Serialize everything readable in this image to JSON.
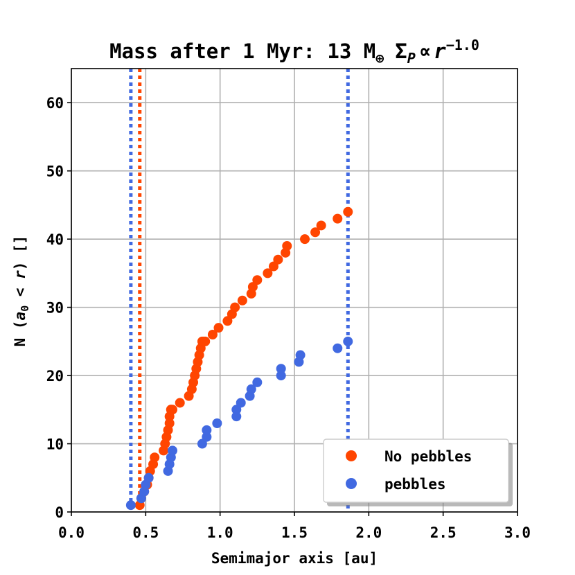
{
  "chart_data": {
    "type": "scatter",
    "title": {
      "prefix": "Mass after 1 Myr: 13 M",
      "oplus": "⊕",
      "sigma": "Σ",
      "sigma_sub": "P",
      "propto": "∝",
      "r": "r",
      "exponent": "−1.0"
    },
    "xlabel": "Semimajor axis [au]",
    "ylabel": {
      "prefix": "N (",
      "a": "a",
      "sub": "0",
      "lt": " < ",
      "r": "r",
      "suffix": ") []"
    },
    "xlim": [
      0.0,
      3.0
    ],
    "ylim": [
      0,
      65
    ],
    "xticks": [
      "0.0",
      "0.5",
      "1.0",
      "1.5",
      "2.0",
      "2.5",
      "3.0"
    ],
    "yticks": [
      "0",
      "10",
      "20",
      "30",
      "40",
      "50",
      "60"
    ],
    "grid": true,
    "legend_position": "lower-right",
    "series": [
      {
        "name": "No pebbles",
        "color": "#ff4500",
        "x": [
          0.46,
          0.47,
          0.49,
          0.51,
          0.52,
          0.53,
          0.55,
          0.56,
          0.62,
          0.63,
          0.64,
          0.65,
          0.66,
          0.66,
          0.67,
          0.67,
          0.68,
          0.73,
          0.79,
          0.81,
          0.82,
          0.83,
          0.84,
          0.85,
          0.86,
          0.87,
          0.88,
          0.89,
          0.9,
          0.95,
          0.99,
          1.05,
          1.08,
          1.1,
          1.15,
          1.21,
          1.22,
          1.25,
          1.32,
          1.36,
          1.39,
          1.44,
          1.45,
          1.57,
          1.64,
          1.68,
          1.79,
          1.86
        ],
        "y": [
          1,
          2,
          3,
          4,
          5,
          6,
          7,
          8,
          9,
          10,
          11,
          12,
          13,
          14,
          15,
          15,
          15,
          16,
          17,
          18,
          19,
          20,
          21,
          22,
          23,
          24,
          25,
          25,
          25,
          26,
          27,
          28,
          29,
          30,
          31,
          32,
          33,
          34,
          35,
          36,
          37,
          38,
          39,
          40,
          41,
          42,
          43,
          44
        ]
      },
      {
        "name": "pebbles",
        "color": "#4169e1",
        "x": [
          0.4,
          0.47,
          0.49,
          0.5,
          0.52,
          0.65,
          0.66,
          0.67,
          0.68,
          0.88,
          0.91,
          0.91,
          0.98,
          1.11,
          1.11,
          1.14,
          1.2,
          1.21,
          1.25,
          1.41,
          1.41,
          1.53,
          1.54,
          1.79,
          1.86
        ],
        "y": [
          1,
          2,
          3,
          4,
          5,
          6,
          7,
          8,
          9,
          10,
          11,
          12,
          13,
          14,
          15,
          16,
          17,
          18,
          19,
          20,
          21,
          22,
          23,
          24,
          25
        ]
      }
    ],
    "vlines": [
      {
        "x": 0.4,
        "color": "#4169e1"
      },
      {
        "x": 0.46,
        "color": "#ff4500"
      },
      {
        "x": 1.86,
        "color": "#4169e1"
      }
    ]
  }
}
